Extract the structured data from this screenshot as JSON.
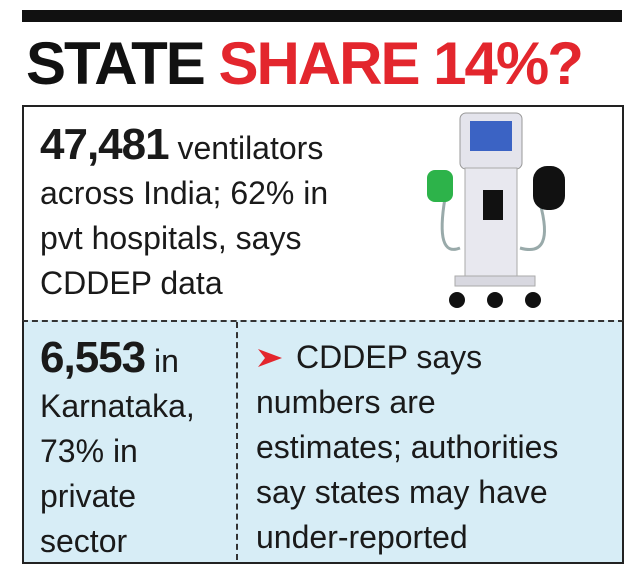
{
  "header": {
    "title_part1": "STATE",
    "title_part2": "SHARE 14%?"
  },
  "box1": {
    "lead": "47,481",
    "lines": [
      "ventilators",
      "across India; 62% in",
      "pvt hospitals, says",
      "CDDEP data"
    ]
  },
  "box2": {
    "lead": "6,553",
    "lines": [
      "in",
      "Karnataka,",
      "73% in",
      "private",
      "sector"
    ]
  },
  "box3": {
    "lines": [
      "CDDEP says",
      "numbers are",
      "estimates; authorities",
      "say states may have",
      "under-reported"
    ]
  }
}
